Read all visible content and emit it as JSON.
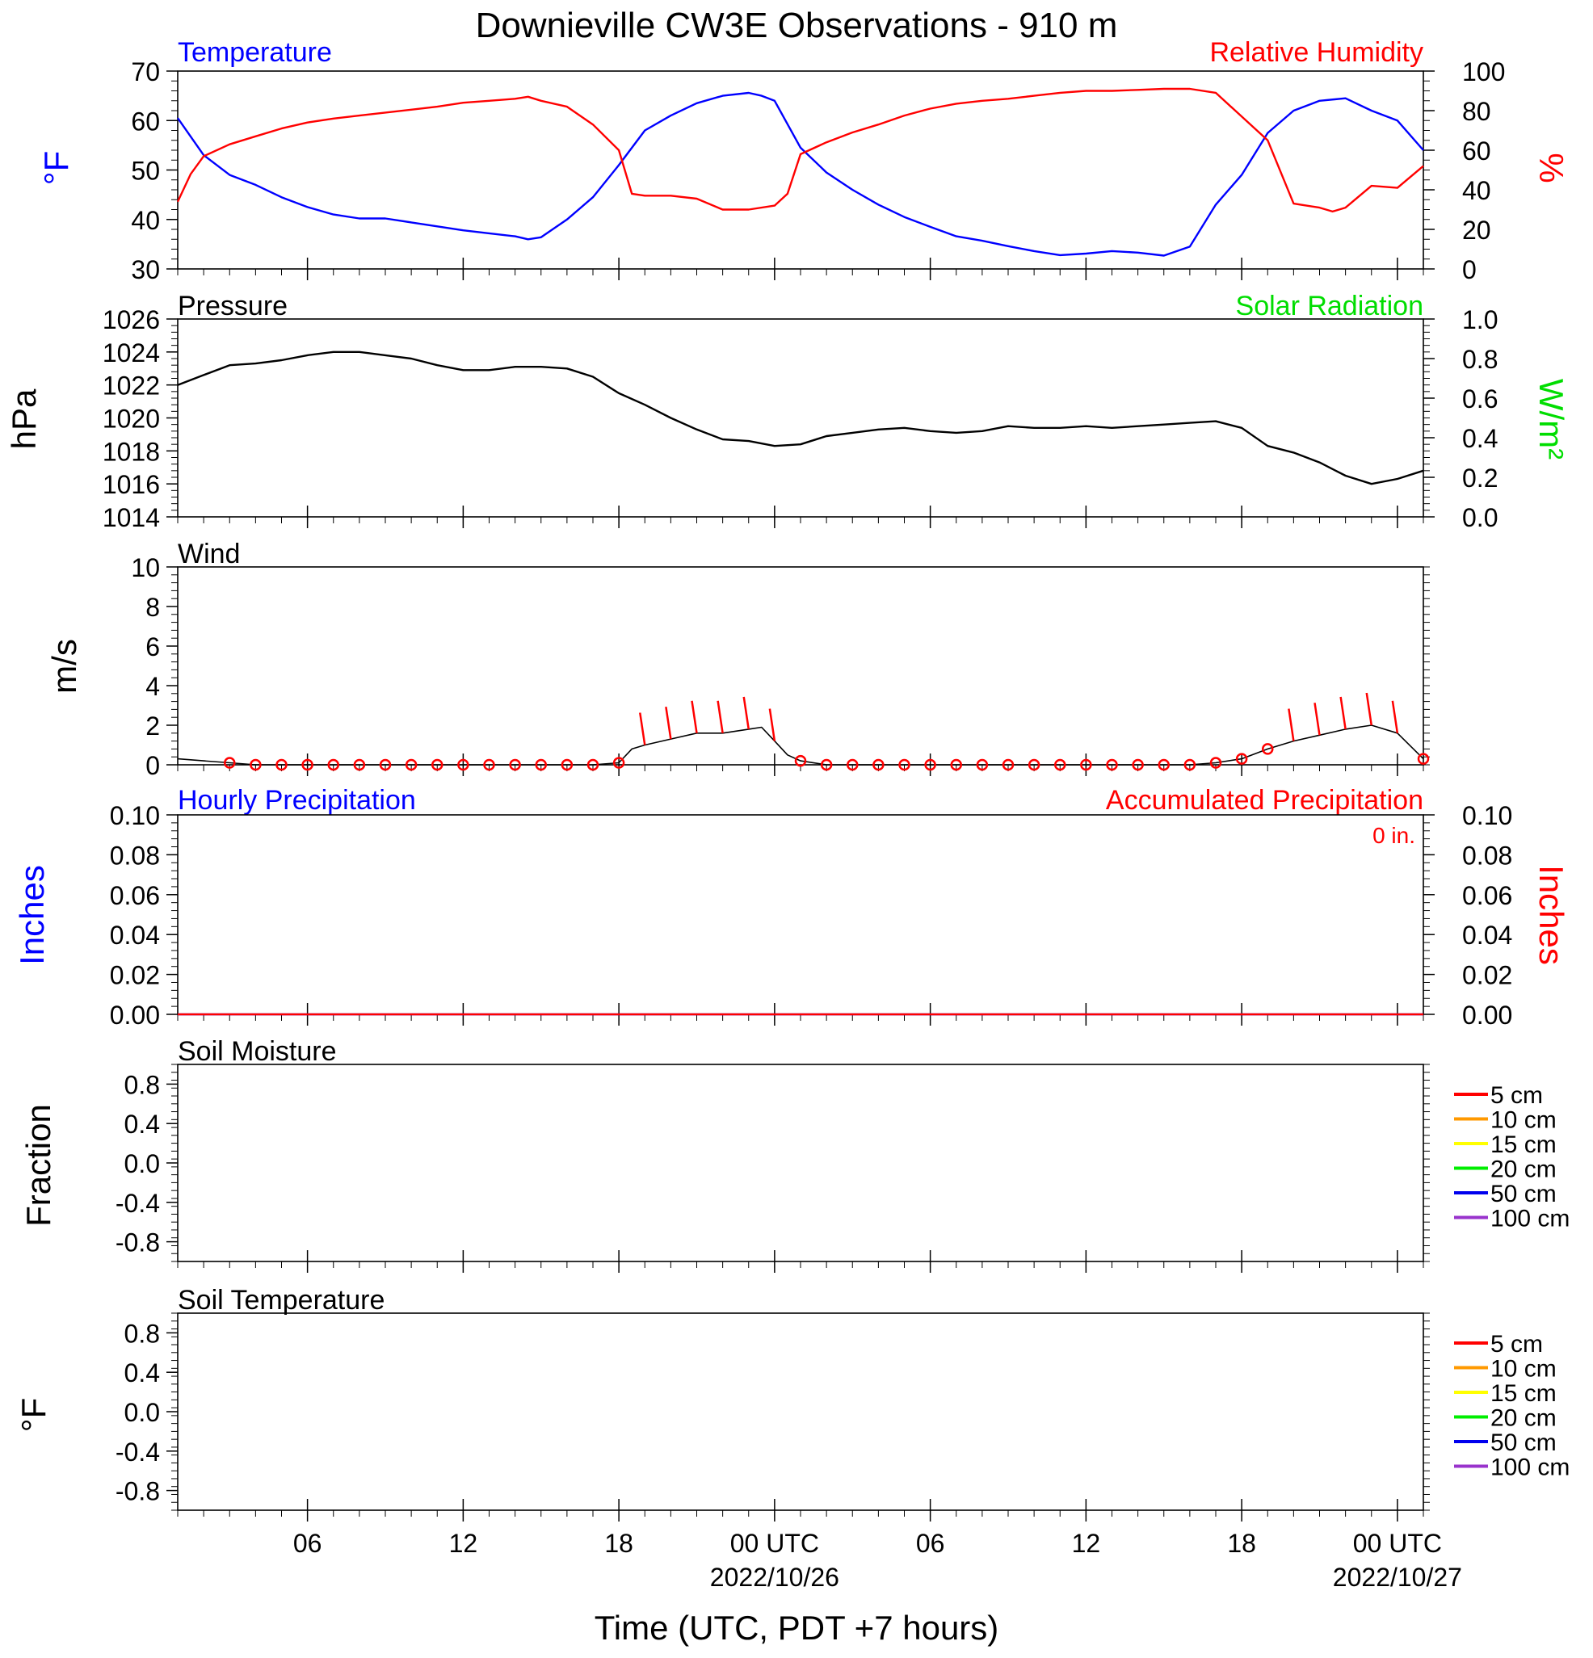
{
  "title": "Downieville CW3E Observations - 910 m",
  "xlabel": "Time (UTC, PDT +7 hours)",
  "x_axis": {
    "start_hour": 1,
    "end_hour": 49,
    "ticks": [
      {
        "hour": 6,
        "label": "06",
        "date": ""
      },
      {
        "hour": 12,
        "label": "12",
        "date": ""
      },
      {
        "hour": 18,
        "label": "18",
        "date": ""
      },
      {
        "hour": 24,
        "label": "00 UTC",
        "date": "2022/10/26"
      },
      {
        "hour": 30,
        "label": "06",
        "date": ""
      },
      {
        "hour": 36,
        "label": "12",
        "date": ""
      },
      {
        "hour": 42,
        "label": "18",
        "date": ""
      },
      {
        "hour": 48,
        "label": "00 UTC",
        "date": "2022/10/27"
      }
    ]
  },
  "colors": {
    "temperature": "#0000ff",
    "humidity": "#ff0000",
    "pressure": "#000000",
    "solar": "#00dd00",
    "wind": "#000000",
    "wind_barb": "#ff0000",
    "precip_hourly": "#0000ff",
    "precip_accum": "#ff0000"
  },
  "panels": {
    "temp_rh": {
      "left_title": "Temperature",
      "right_title": "Relative Humidity",
      "left_unit": "°F",
      "right_unit": "%",
      "left_ticks": [
        "30",
        "40",
        "50",
        "60",
        "70"
      ],
      "left_range": [
        30,
        70
      ],
      "right_ticks": [
        "0",
        "20",
        "40",
        "60",
        "80",
        "100"
      ],
      "right_range": [
        0,
        100
      ]
    },
    "pressure": {
      "left_title": "Pressure",
      "right_title": "Solar Radiation",
      "left_unit": "hPa",
      "right_unit": "W/m²",
      "left_ticks": [
        "1014",
        "1016",
        "1018",
        "1020",
        "1022",
        "1024",
        "1026"
      ],
      "left_range": [
        1014,
        1026
      ],
      "right_ticks": [
        "0.0",
        "0.2",
        "0.4",
        "0.6",
        "0.8",
        "1.0"
      ],
      "right_range": [
        0,
        1
      ]
    },
    "wind": {
      "left_title": "Wind",
      "left_unit": "m/s",
      "left_ticks": [
        "0",
        "2",
        "4",
        "6",
        "8",
        "10"
      ],
      "left_range": [
        0,
        10
      ]
    },
    "precip": {
      "left_title": "Hourly Precipitation",
      "right_title": "Accumulated Precipitation",
      "left_unit": "Inches",
      "right_unit": "Inches",
      "total_label": "0 in.",
      "left_ticks": [
        "0.00",
        "0.02",
        "0.04",
        "0.06",
        "0.08",
        "0.10"
      ],
      "left_range": [
        0,
        0.1
      ],
      "right_ticks": [
        "0.00",
        "0.02",
        "0.04",
        "0.06",
        "0.08",
        "0.10"
      ],
      "right_range": [
        0,
        0.1
      ]
    },
    "soil_moisture": {
      "left_title": "Soil Moisture",
      "left_unit": "Fraction",
      "left_ticks": [
        "-0.8",
        "-0.4",
        "0.0",
        "0.4",
        "0.8"
      ],
      "left_range": [
        -1,
        1
      ]
    },
    "soil_temp": {
      "left_title": "Soil Temperature",
      "left_unit": "°F",
      "left_ticks": [
        "-0.8",
        "-0.4",
        "0.0",
        "0.4",
        "0.8"
      ],
      "left_range": [
        -1,
        1
      ]
    }
  },
  "soil_legend": [
    {
      "label": "5 cm",
      "color": "#ff0000"
    },
    {
      "label": "10 cm",
      "color": "#ff9900"
    },
    {
      "label": "15 cm",
      "color": "#ffff00"
    },
    {
      "label": "20 cm",
      "color": "#00ee00"
    },
    {
      "label": "50 cm",
      "color": "#0000ee"
    },
    {
      "label": "100 cm",
      "color": "#9933cc"
    }
  ],
  "chart_data": [
    {
      "type": "line",
      "title": "Temperature",
      "ylabel": "°F",
      "ylim": [
        30,
        70
      ],
      "x": [
        1,
        2,
        3,
        4,
        5,
        6,
        7,
        8,
        9,
        10,
        11,
        12,
        13,
        14,
        14.5,
        15,
        16,
        17,
        18,
        19,
        20,
        21,
        22,
        23,
        23.5,
        24,
        25,
        26,
        27,
        28,
        29,
        30,
        31,
        32,
        33,
        34,
        35,
        36,
        37,
        38,
        39,
        40,
        41,
        42,
        43,
        44,
        45,
        46,
        47,
        48,
        49
      ],
      "series": [
        {
          "name": "Temperature",
          "values": [
            60.5,
            53,
            49,
            47,
            44.5,
            42.5,
            41,
            40.2,
            40.2,
            39.4,
            38.6,
            37.8,
            37.2,
            36.6,
            36,
            36.4,
            40,
            44.5,
            51,
            58,
            61,
            63.5,
            65,
            65.6,
            65,
            64,
            54.5,
            49.5,
            46,
            43,
            40.5,
            38.5,
            36.6,
            35.7,
            34.6,
            33.6,
            32.8,
            33.1,
            33.6,
            33.3,
            32.7,
            34.5,
            43,
            49,
            57.5,
            62,
            64,
            64.5,
            62,
            60,
            54
          ]
        }
      ]
    },
    {
      "type": "line",
      "title": "Relative Humidity",
      "ylabel": "%",
      "ylim": [
        0,
        100
      ],
      "x": [
        1,
        1.5,
        2,
        3,
        4,
        5,
        6,
        7,
        8,
        9,
        10,
        11,
        12,
        13,
        14,
        14.5,
        15,
        16,
        17,
        18,
        18.5,
        19,
        20,
        21,
        22,
        23,
        24,
        24.5,
        25,
        26,
        27,
        28,
        29,
        30,
        31,
        32,
        33,
        34,
        35,
        36,
        37,
        38,
        39,
        40,
        41,
        42,
        43,
        44,
        45,
        45.5,
        46,
        47,
        48,
        49
      ],
      "series": [
        {
          "name": "Relative Humidity",
          "values": [
            34,
            48,
            57,
            63,
            67,
            71,
            74,
            76,
            77.5,
            79,
            80.5,
            82,
            84,
            85,
            86,
            87,
            85,
            82,
            73,
            60,
            38,
            37,
            37,
            35.5,
            30,
            30,
            32,
            38,
            58,
            64,
            69,
            73,
            77.5,
            81,
            83.5,
            85,
            86,
            87.5,
            89,
            90,
            90,
            90.5,
            91,
            91,
            89,
            77,
            65,
            33,
            31,
            29,
            31,
            42,
            41,
            52
          ]
        }
      ]
    },
    {
      "type": "line",
      "title": "Pressure",
      "ylabel": "hPa",
      "ylim": [
        1014,
        1026
      ],
      "x": [
        1,
        2,
        3,
        4,
        5,
        6,
        7,
        8,
        9,
        10,
        11,
        12,
        13,
        14,
        15,
        16,
        17,
        18,
        19,
        20,
        21,
        22,
        23,
        24,
        25,
        26,
        27,
        28,
        29,
        30,
        31,
        32,
        33,
        34,
        35,
        36,
        37,
        38,
        39,
        40,
        41,
        42,
        43,
        44,
        45,
        46,
        47,
        48,
        49
      ],
      "series": [
        {
          "name": "Pressure",
          "values": [
            1022,
            1022.6,
            1023.2,
            1023.3,
            1023.5,
            1023.8,
            1024,
            1024,
            1023.8,
            1023.6,
            1023.2,
            1022.9,
            1022.9,
            1023.1,
            1023.1,
            1023,
            1022.5,
            1021.5,
            1020.8,
            1020,
            1019.3,
            1018.7,
            1018.6,
            1018.3,
            1018.4,
            1018.9,
            1019.1,
            1019.3,
            1019.4,
            1019.2,
            1019.1,
            1019.2,
            1019.5,
            1019.4,
            1019.4,
            1019.5,
            1019.4,
            1019.5,
            1019.6,
            1019.7,
            1019.8,
            1019.4,
            1018.3,
            1017.9,
            1017.3,
            1016.5,
            1016,
            1016.3,
            1016.8
          ]
        }
      ]
    },
    {
      "type": "line",
      "title": "Wind",
      "ylabel": "m/s",
      "ylim": [
        0,
        10
      ],
      "x": [
        1,
        2,
        3,
        4,
        5,
        6,
        7,
        8,
        9,
        10,
        11,
        12,
        13,
        14,
        15,
        16,
        17,
        18,
        18.5,
        19,
        20,
        21,
        22,
        23,
        23.5,
        24,
        24.5,
        25,
        26,
        27,
        28,
        29,
        30,
        31,
        32,
        33,
        34,
        35,
        36,
        37,
        38,
        39,
        40,
        41,
        42,
        43,
        44,
        45,
        46,
        47,
        48,
        49
      ],
      "series": [
        {
          "name": "Wind speed",
          "values": [
            0.3,
            0.2,
            0.1,
            0,
            0,
            0,
            0,
            0,
            0,
            0,
            0,
            0,
            0,
            0,
            0,
            0,
            0,
            0.1,
            0.8,
            1,
            1.3,
            1.6,
            1.6,
            1.8,
            1.9,
            1.2,
            0.5,
            0.2,
            0,
            0,
            0,
            0,
            0,
            0,
            0,
            0,
            0,
            0,
            0,
            0,
            0,
            0,
            0,
            0.1,
            0.3,
            0.8,
            1.2,
            1.5,
            1.8,
            2,
            1.6,
            0.3
          ]
        }
      ]
    },
    {
      "type": "line",
      "title": "Hourly Precipitation",
      "ylabel": "Inches",
      "ylim": [
        0,
        0.1
      ],
      "x": [
        1,
        49
      ],
      "series": [
        {
          "name": "Hourly Precipitation",
          "values": [
            0,
            0
          ]
        },
        {
          "name": "Accumulated Precipitation",
          "values": [
            0,
            0
          ]
        }
      ]
    }
  ]
}
